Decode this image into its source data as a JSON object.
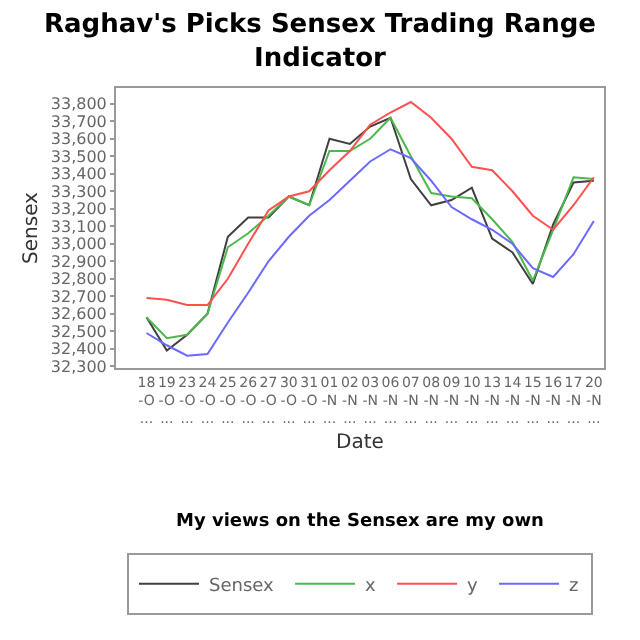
{
  "chart_data": {
    "type": "line",
    "title": "Raghav's Picks Sensex Trading Range Indicator",
    "xlabel": "Date",
    "ylabel": "Sensex",
    "annotations": [
      "My views on the Sensex are my own"
    ],
    "categories": [
      "18-O...",
      "19-O...",
      "23-O...",
      "24-O...",
      "25-O...",
      "26-O...",
      "27-O...",
      "30-O...",
      "31-O...",
      "01-N...",
      "02-N...",
      "03-N...",
      "06-N...",
      "07-N...",
      "08-N...",
      "09-N...",
      "10-N...",
      "13-N...",
      "14-N...",
      "15-N...",
      "16-N...",
      "17-N...",
      "20-N..."
    ],
    "series": [
      {
        "name": "Sensex",
        "color": "#404040",
        "values": [
          32580,
          32390,
          32480,
          32600,
          33040,
          33150,
          33150,
          33270,
          33220,
          33600,
          33570,
          33670,
          33720,
          33370,
          33220,
          33250,
          33320,
          33030,
          32950,
          32770,
          33110,
          33350,
          33360
        ]
      },
      {
        "name": "x",
        "color": "#4cb84c",
        "values": [
          32580,
          32460,
          32480,
          32600,
          32980,
          33060,
          33160,
          33270,
          33220,
          33530,
          33530,
          33600,
          33720,
          33500,
          33290,
          33270,
          33260,
          33140,
          33010,
          32790,
          33080,
          33380,
          33370
        ]
      },
      {
        "name": "y",
        "color": "#ff5050",
        "values": [
          32690,
          32680,
          32650,
          32650,
          32800,
          33000,
          33190,
          33270,
          33300,
          33420,
          33530,
          33680,
          33750,
          33810,
          33720,
          33600,
          33440,
          33420,
          33300,
          33160,
          33080,
          33220,
          33380
        ]
      },
      {
        "name": "z",
        "color": "#6a6aff",
        "values": [
          32490,
          32420,
          32360,
          32370,
          32550,
          32720,
          32900,
          33040,
          33160,
          33250,
          33360,
          33470,
          33540,
          33490,
          33360,
          33210,
          33140,
          33080,
          33000,
          32860,
          32810,
          32940,
          33130
        ]
      }
    ],
    "ylim": [
      32290,
      33890
    ],
    "yticks": [
      {
        "value": 32300,
        "label": "32,300"
      },
      {
        "value": 32400,
        "label": "32,400"
      },
      {
        "value": 32500,
        "label": "32,500"
      },
      {
        "value": 32600,
        "label": "32,600"
      },
      {
        "value": 32700,
        "label": "32,700"
      },
      {
        "value": 32800,
        "label": "32,800"
      },
      {
        "value": 32900,
        "label": "32,900"
      },
      {
        "value": 33000,
        "label": "33,000"
      },
      {
        "value": 33100,
        "label": "33,100"
      },
      {
        "value": 33200,
        "label": "33,200"
      },
      {
        "value": 33300,
        "label": "33,300"
      },
      {
        "value": 33400,
        "label": "33,400"
      },
      {
        "value": 33500,
        "label": "33,500"
      },
      {
        "value": 33600,
        "label": "33,600"
      },
      {
        "value": 33700,
        "label": "33,700"
      },
      {
        "value": 33800,
        "label": "33,800"
      }
    ],
    "grid": false,
    "legend": "bottom",
    "marker": "none",
    "line_style": "solid"
  }
}
